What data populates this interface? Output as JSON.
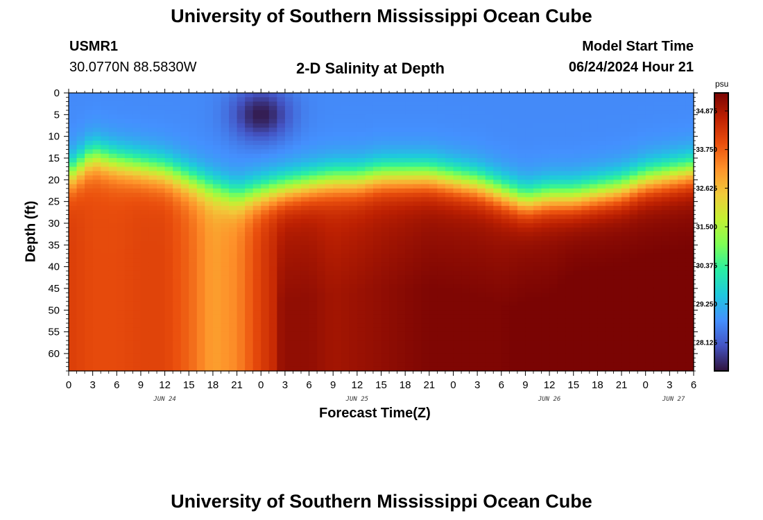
{
  "header": {
    "title": "University of Southern Mississippi Ocean Cube",
    "station": "USMR1",
    "coords": "30.0770N  88.5830W",
    "chart_title": "2-D Salinity at Depth",
    "model_start_label": "Model Start Time",
    "model_start_value": "06/24/2024 Hour 21"
  },
  "footer": {
    "title": "University of Southern Mississippi Ocean Cube"
  },
  "colorbar": {
    "unit": "psu",
    "tick_labels": [
      "34.875",
      "33.750",
      "32.625",
      "31.500",
      "30.375",
      "29.250",
      "28.125"
    ],
    "tick_values": [
      34.875,
      33.75,
      32.625,
      31.5,
      30.375,
      29.25,
      28.125
    ],
    "range": [
      27.3,
      35.4
    ],
    "colors": [
      "#30123b",
      "#4454c4",
      "#4490fe",
      "#1fc8de",
      "#29efa2",
      "#7eff55",
      "#c3f133",
      "#f1ca3a",
      "#fe922a",
      "#ea4f0d",
      "#be2102",
      "#7a0403"
    ]
  },
  "chart_data": {
    "type": "heatmap",
    "title": "2-D Salinity at Depth",
    "xlabel": "Forecast Time(Z)",
    "ylabel": "Depth (ft)",
    "xlim": [
      0,
      78
    ],
    "ylim": [
      0,
      64
    ],
    "y_inverted": true,
    "x_tick_hours": [
      0,
      3,
      6,
      9,
      12,
      15,
      18,
      21,
      24,
      27,
      30,
      33,
      36,
      39,
      42,
      45,
      48,
      51,
      54,
      57,
      60,
      63,
      66,
      69,
      72,
      75,
      78
    ],
    "x_tick_labels": [
      "0",
      "3",
      "6",
      "9",
      "12",
      "15",
      "18",
      "21",
      "0",
      "3",
      "6",
      "9",
      "12",
      "15",
      "18",
      "21",
      "0",
      "3",
      "6",
      "9",
      "12",
      "15",
      "18",
      "21",
      "0",
      "3",
      "6"
    ],
    "y_tick_values": [
      0,
      5,
      10,
      15,
      20,
      25,
      30,
      35,
      40,
      45,
      50,
      55,
      60
    ],
    "y_tick_labels": [
      "0",
      "5",
      "10",
      "15",
      "20",
      "25",
      "30",
      "35",
      "40",
      "45",
      "50",
      "55",
      "60"
    ],
    "date_labels": [
      {
        "label": "JUN 24",
        "hour": 12
      },
      {
        "label": "JUN 25",
        "hour": 36
      },
      {
        "label": "JUN 26",
        "hour": 60
      },
      {
        "label": "JUN 27",
        "hour": 75.5
      }
    ],
    "units": "psu",
    "halocline": {
      "hours": [
        0,
        3,
        6,
        9,
        12,
        15,
        18,
        21,
        24,
        27,
        30,
        33,
        36,
        39,
        42,
        45,
        48,
        51,
        54,
        57,
        60,
        63,
        66,
        69,
        72,
        75,
        78
      ],
      "depth_ft": [
        19,
        14.5,
        16,
        17,
        18,
        20,
        22,
        24,
        23,
        22,
        21,
        20,
        20,
        19,
        19,
        19,
        20,
        21,
        23,
        25,
        24,
        24,
        23,
        22,
        20,
        19,
        18
      ],
      "deep_salinity": [
        34.2,
        34.0,
        34.0,
        34.1,
        34.1,
        33.7,
        33.0,
        33.3,
        34.2,
        34.8,
        34.8,
        34.6,
        34.7,
        34.8,
        34.9,
        35.0,
        35.0,
        35.0,
        35.0,
        35.1,
        35.1,
        35.2,
        35.2,
        35.2,
        35.2,
        35.2,
        35.2
      ]
    },
    "surface_low": {
      "hour": 24,
      "depth_ft": 5,
      "min_salinity": 27.4
    },
    "surface_salinity": 28.7
  }
}
